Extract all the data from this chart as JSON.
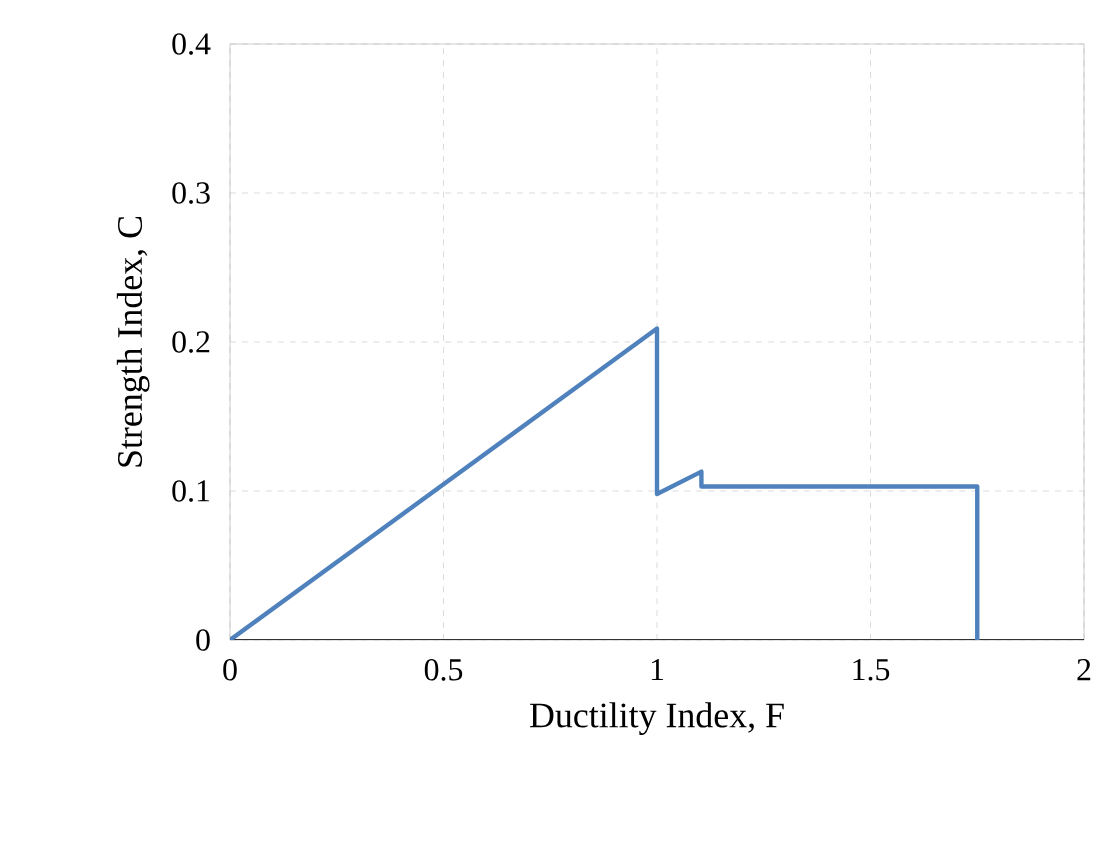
{
  "chart_data": {
    "type": "line",
    "xlabel": "Ductility Index, F",
    "ylabel": "Strength Index, C",
    "x": [
      0,
      1,
      1,
      1.104,
      1.104,
      1.75,
      1.75
    ],
    "series": [
      {
        "color": "#4f81bd",
        "values": [
          0,
          0.209,
          0.098,
          0.113,
          0.103,
          0.103,
          0
        ]
      }
    ],
    "xlim": [
      0,
      2
    ],
    "ylim": [
      0,
      0.4
    ],
    "xticks": [
      0,
      0.5,
      1,
      1.5,
      2
    ],
    "yticks": [
      0,
      0.1,
      0.2,
      0.3,
      0.4
    ],
    "grid": true,
    "marker": "none",
    "line_style": "solid"
  }
}
